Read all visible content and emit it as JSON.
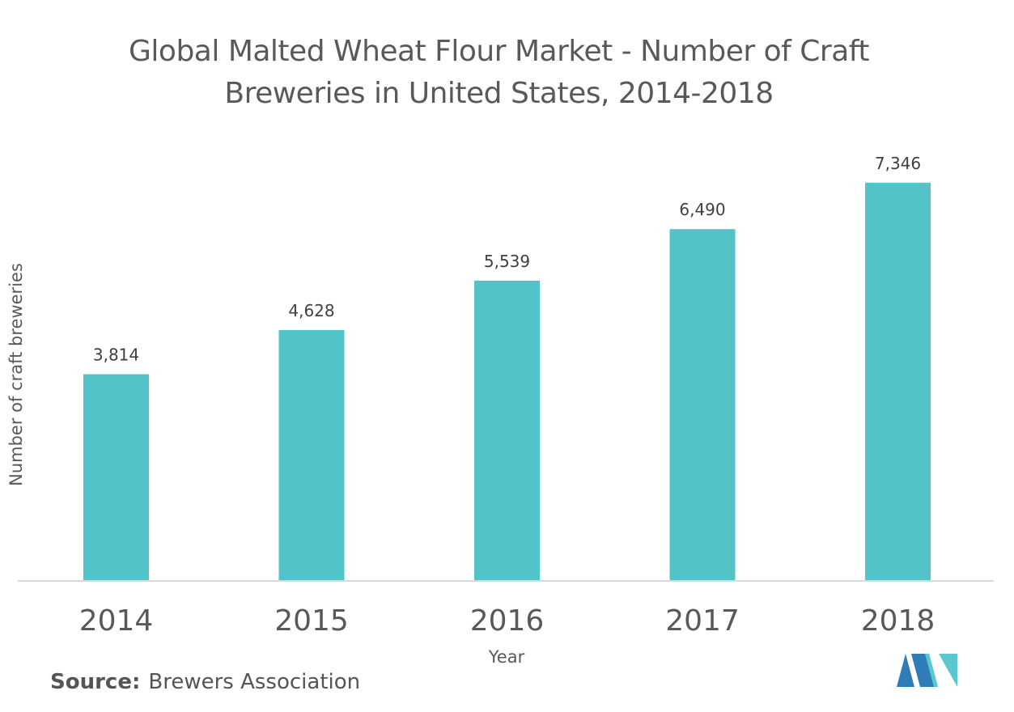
{
  "title": {
    "line1": "Global Malted Wheat Flour Market - Number of Craft",
    "line2": "Breweries in United States, 2014-2018"
  },
  "source": {
    "label": "Source:",
    "text": "Brewers Association"
  },
  "colors": {
    "bar": "#52c4c9",
    "axis": "#d9d9d9",
    "text": "#595959",
    "logo_dark": "#2f7db6",
    "logo_light": "#5bc8cf"
  },
  "chart_data": {
    "type": "bar",
    "categories": [
      "2014",
      "2015",
      "2016",
      "2017",
      "2018"
    ],
    "values": [
      3814,
      4628,
      5539,
      6490,
      7346
    ],
    "value_labels": [
      "3,814",
      "4,628",
      "5,539",
      "6,490",
      "7,346"
    ],
    "xlabel": "Year",
    "ylabel": "Number of craft breweries",
    "ylim": [
      0,
      8000
    ],
    "grid": false,
    "legend": "none"
  }
}
